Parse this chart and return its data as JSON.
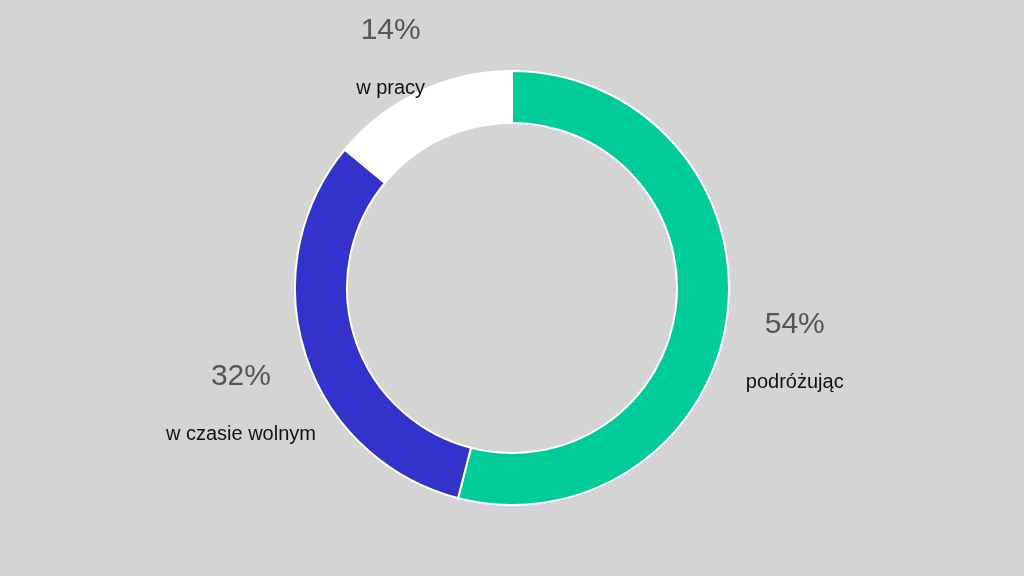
{
  "chart_data": {
    "type": "donut",
    "categories": [
      "podróżując",
      "w czasie wolnym",
      "w pracy"
    ],
    "values": [
      54,
      32,
      14
    ],
    "colors": [
      "#00cc99",
      "#3333cc",
      "#ffffff"
    ],
    "value_labels": [
      "54%",
      "32%",
      "14%"
    ],
    "legend": false
  }
}
